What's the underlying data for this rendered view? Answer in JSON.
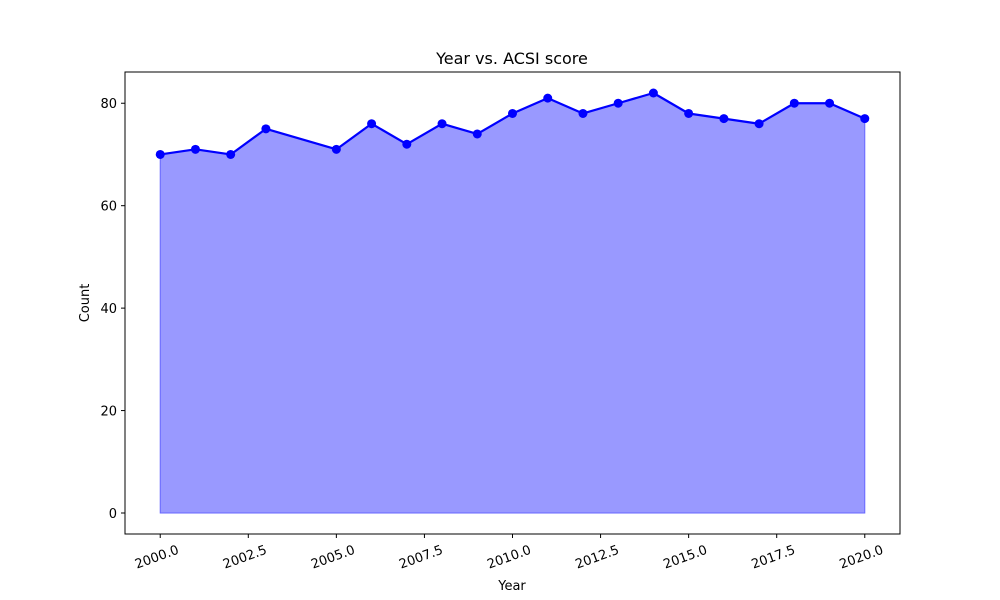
{
  "chart_data": {
    "type": "area",
    "title": "Year vs. ACSI score",
    "xlabel": "Year",
    "ylabel": "Count",
    "xlim": [
      1999.0,
      2021.0
    ],
    "ylim": [
      -4.1,
      86.1
    ],
    "xticks": [
      2000.0,
      2002.5,
      2005.0,
      2007.5,
      2010.0,
      2012.5,
      2015.0,
      2017.5,
      2020.0
    ],
    "xtick_labels": [
      "2000.0",
      "2002.5",
      "2005.0",
      "2007.5",
      "2010.0",
      "2012.5",
      "2015.0",
      "2017.5",
      "2020.0"
    ],
    "yticks": [
      0,
      20,
      40,
      60,
      80
    ],
    "ytick_labels": [
      "0",
      "20",
      "40",
      "60",
      "80"
    ],
    "x": [
      2000,
      2001,
      2002,
      2003,
      2005,
      2006,
      2007,
      2008,
      2009,
      2010,
      2011,
      2012,
      2013,
      2014,
      2015,
      2016,
      2017,
      2018,
      2019,
      2020
    ],
    "y": [
      70,
      71,
      70,
      75,
      71,
      76,
      72,
      76,
      74,
      78,
      81,
      78,
      80,
      82,
      78,
      77,
      76,
      80,
      80,
      77
    ],
    "grid": false,
    "line_color": "#0000ff",
    "fill_color": "#9999ff",
    "fill_edge_color": "#6666ff"
  }
}
